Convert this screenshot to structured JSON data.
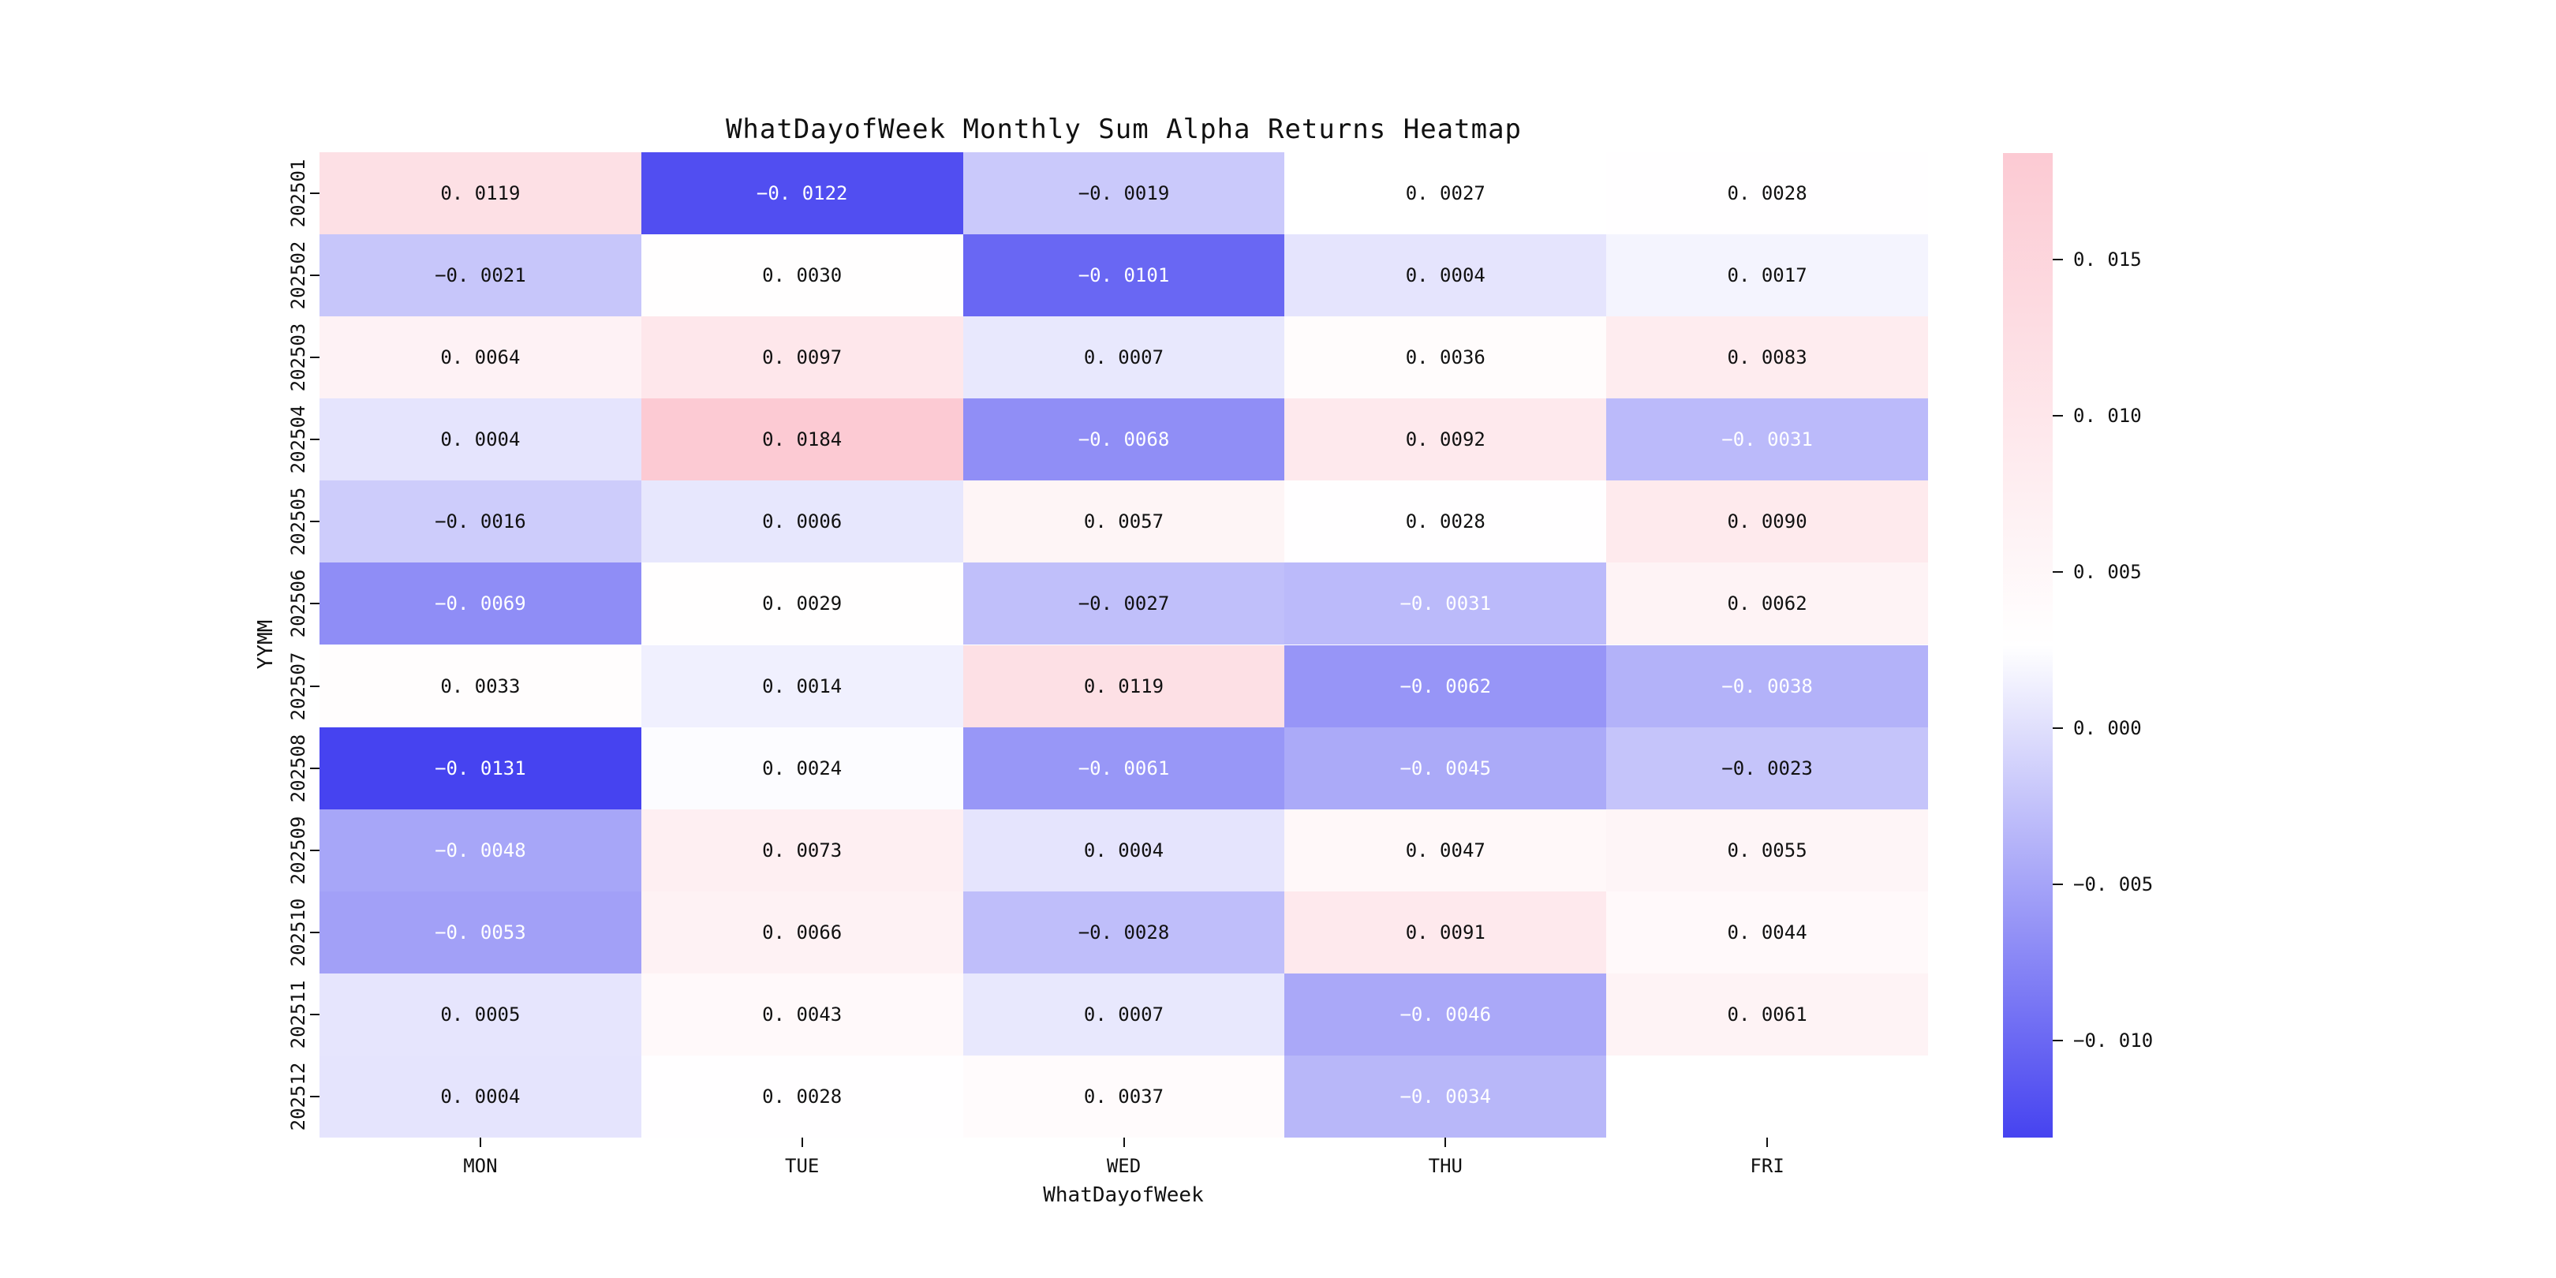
{
  "title": "WhatDayofWeek Monthly Sum Alpha Returns Heatmap",
  "chart_data": {
    "type": "heatmap",
    "title": "WhatDayofWeek Monthly Sum Alpha Returns Heatmap",
    "xlabel": "WhatDayofWeek",
    "ylabel": "YYMM",
    "columns": [
      "MON",
      "TUE",
      "WED",
      "THU",
      "FRI"
    ],
    "rows": [
      "202501",
      "202502",
      "202503",
      "202504",
      "202505",
      "202506",
      "202507",
      "202508",
      "202509",
      "202510",
      "202511",
      "202512"
    ],
    "values": [
      [
        0.0119,
        -0.0122,
        -0.0019,
        0.0027,
        0.0028
      ],
      [
        -0.0021,
        0.003,
        -0.0101,
        0.0004,
        0.0017
      ],
      [
        0.0064,
        0.0097,
        0.0007,
        0.0036,
        0.0083
      ],
      [
        0.0004,
        0.0184,
        -0.0068,
        0.0092,
        -0.0031
      ],
      [
        -0.0016,
        0.0006,
        0.0057,
        0.0028,
        0.009
      ],
      [
        -0.0069,
        0.0029,
        -0.0027,
        -0.0031,
        0.0062
      ],
      [
        0.0033,
        0.0014,
        0.0119,
        -0.0062,
        -0.0038
      ],
      [
        -0.0131,
        0.0024,
        -0.0061,
        -0.0045,
        -0.0023
      ],
      [
        -0.0048,
        0.0073,
        0.0004,
        0.0047,
        0.0055
      ],
      [
        -0.0053,
        0.0066,
        -0.0028,
        0.0091,
        0.0044
      ],
      [
        0.0005,
        0.0043,
        0.0007,
        -0.0046,
        0.0061
      ],
      [
        0.0004,
        0.0028,
        0.0037,
        -0.0034,
        null
      ]
    ],
    "missing_cells": [
      {
        "row": "202512",
        "column": "FRI"
      }
    ],
    "colorbar": {
      "vmin": -0.0131,
      "vmax": 0.0184,
      "ticks": [
        {
          "v": 0.015,
          "label": "0. 015"
        },
        {
          "v": 0.01,
          "label": "0. 010"
        },
        {
          "v": 0.005,
          "label": "0. 005"
        },
        {
          "v": 0.0,
          "label": "0. 000"
        },
        {
          "v": -0.005,
          "label": "−0. 005"
        },
        {
          "v": -0.01,
          "label": "−0. 010"
        }
      ]
    },
    "colors": {
      "positive_end": "#FCCAD3",
      "center": "#FFFFFF",
      "negative_end": "#4643F0",
      "center_value": 0.00265,
      "annotation_dark": "#111111",
      "annotation_light": "#FFFFFF"
    },
    "grid": false,
    "legend_position": "right-colorbar"
  }
}
